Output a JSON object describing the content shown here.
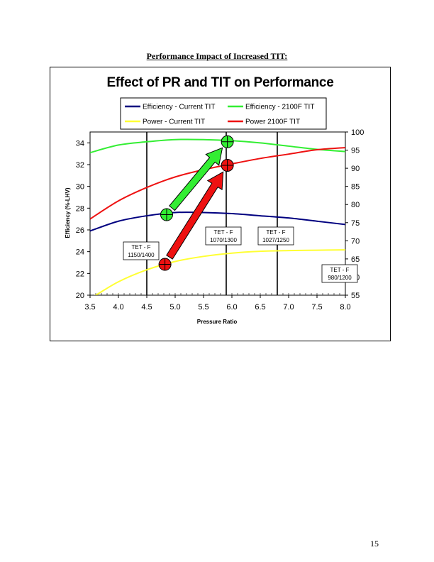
{
  "page": {
    "heading": "Performance Impact of Increased TIT:",
    "page_number": "15"
  },
  "chart_data": {
    "type": "line",
    "title": "Effect of PR and TIT on Performance",
    "xlabel": "Pressure Ratio",
    "ylabel": "Efficiency (%-LHV)",
    "y2label": "",
    "xlim": [
      3.5,
      8.0
    ],
    "ylim": [
      20,
      35
    ],
    "y2lim": [
      55,
      100
    ],
    "xticks": [
      "3.5",
      "4.0",
      "4.5",
      "5.0",
      "5.5",
      "6.0",
      "6.5",
      "7.0",
      "7.5",
      "8.0"
    ],
    "yticks": [
      "20",
      "22",
      "24",
      "26",
      "28",
      "30",
      "32",
      "34"
    ],
    "y2ticks": [
      "55",
      "60",
      "65",
      "70",
      "75",
      "80",
      "85",
      "90",
      "95",
      "100"
    ],
    "grid": false,
    "legend_position": "top",
    "series": [
      {
        "name": "Efficiency - Current TIT",
        "axis": "left",
        "color": "#000080",
        "x": [
          3.5,
          4.0,
          4.5,
          5.0,
          5.5,
          6.0,
          6.5,
          7.0,
          7.5,
          8.0
        ],
        "y": [
          25.9,
          26.8,
          27.3,
          27.6,
          27.6,
          27.5,
          27.3,
          27.1,
          26.8,
          26.5
        ]
      },
      {
        "name": "Efficiency - 2100F TIT",
        "axis": "left",
        "color": "#33ee33",
        "x": [
          3.5,
          4.0,
          4.5,
          5.0,
          5.5,
          6.0,
          6.5,
          7.0,
          7.5,
          8.0
        ],
        "y": [
          33.1,
          33.8,
          34.1,
          34.3,
          34.3,
          34.2,
          34.0,
          33.7,
          33.4,
          33.2
        ]
      },
      {
        "name": "Power - Current TIT",
        "axis": "right",
        "color": "#ffff33",
        "x": [
          3.5,
          3.6,
          4.0,
          4.5,
          5.0,
          5.5,
          6.0,
          6.5,
          7.0,
          7.5,
          8.0
        ],
        "y": [
          54.4,
          55,
          58.7,
          62.0,
          64.3,
          65.7,
          66.6,
          67.1,
          67.3,
          67.4,
          67.5
        ]
      },
      {
        "name": "Power 2100F TIT",
        "axis": "right",
        "color": "#ee1111",
        "x": [
          3.5,
          4.0,
          4.5,
          5.0,
          5.5,
          6.0,
          6.5,
          7.0,
          7.5,
          8.0
        ],
        "y": [
          76.0,
          81.0,
          84.7,
          87.6,
          89.6,
          91.2,
          92.7,
          93.9,
          95.1,
          95.7
        ]
      }
    ],
    "vertical_lines_x": [
      4.5,
      5.9,
      6.8
    ],
    "annotations": [
      {
        "line1": "TET - F",
        "line2": "1150/1400"
      },
      {
        "line1": "TET - F",
        "line2": "1070/1300"
      },
      {
        "line1": "TET - F",
        "line2": "1027/1250"
      },
      {
        "line1": "TET - F",
        "line2": "980/1200"
      }
    ],
    "arrows": [
      {
        "color": "#33ee33",
        "axis": "left",
        "from": [
          4.85,
          27.4
        ],
        "to": [
          5.92,
          34.1
        ]
      },
      {
        "color": "#ee1111",
        "axis": "right",
        "from": [
          4.82,
          63.5
        ],
        "to": [
          5.92,
          90.8
        ]
      }
    ]
  }
}
